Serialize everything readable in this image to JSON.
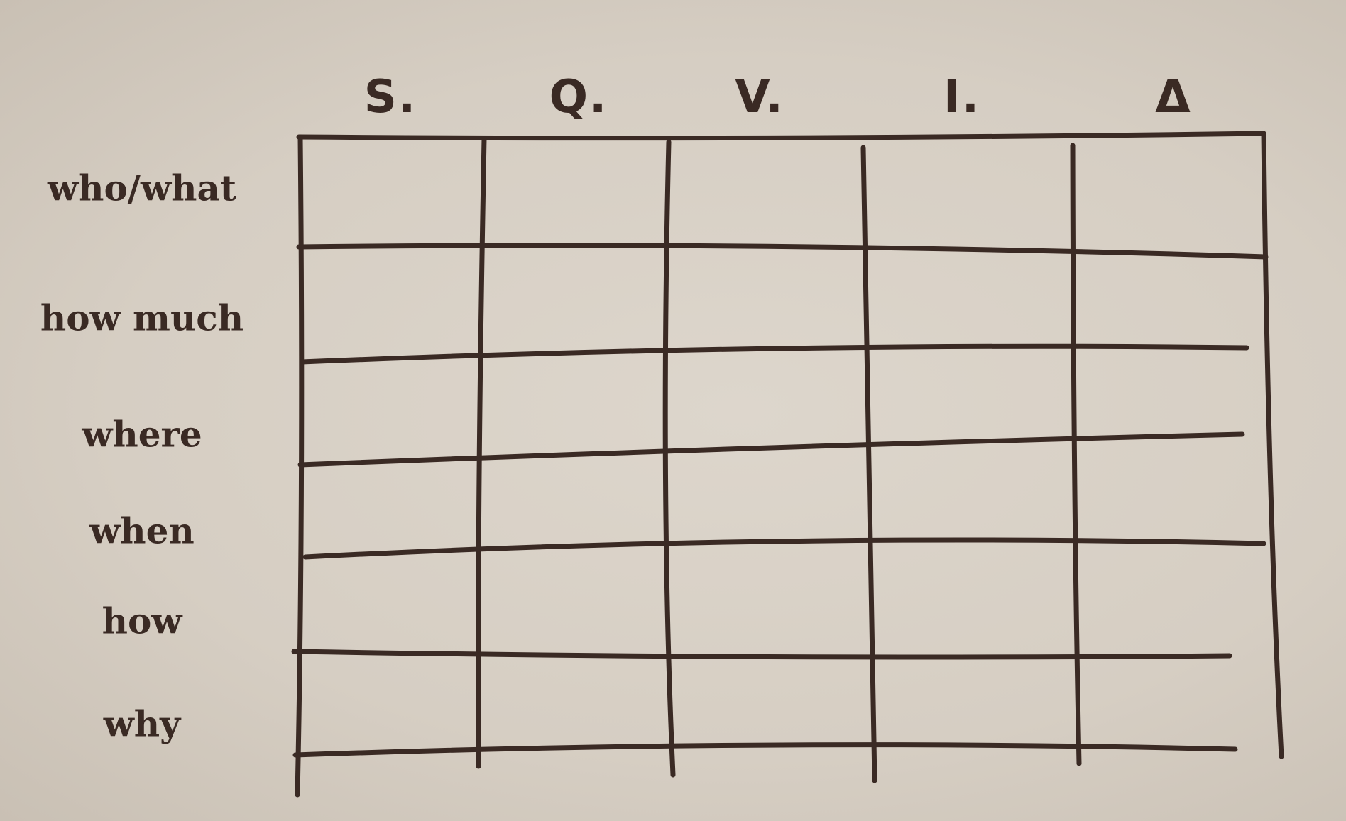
{
  "table": {
    "column_headers": [
      "S.",
      "Q.",
      "V.",
      "I.",
      "Δ"
    ],
    "row_headers": [
      "who/what",
      "how much",
      "where",
      "when",
      "how",
      "why"
    ],
    "cells": [
      [
        "",
        "",
        "",
        "",
        ""
      ],
      [
        "",
        "",
        "",
        "",
        ""
      ],
      [
        "",
        "",
        "",
        "",
        ""
      ],
      [
        "",
        "",
        "",
        "",
        ""
      ],
      [
        "",
        "",
        "",
        "",
        ""
      ],
      [
        "",
        "",
        "",
        "",
        ""
      ]
    ]
  },
  "colors": {
    "ink": "#3a2a24",
    "paper": "#d9d2c8"
  }
}
